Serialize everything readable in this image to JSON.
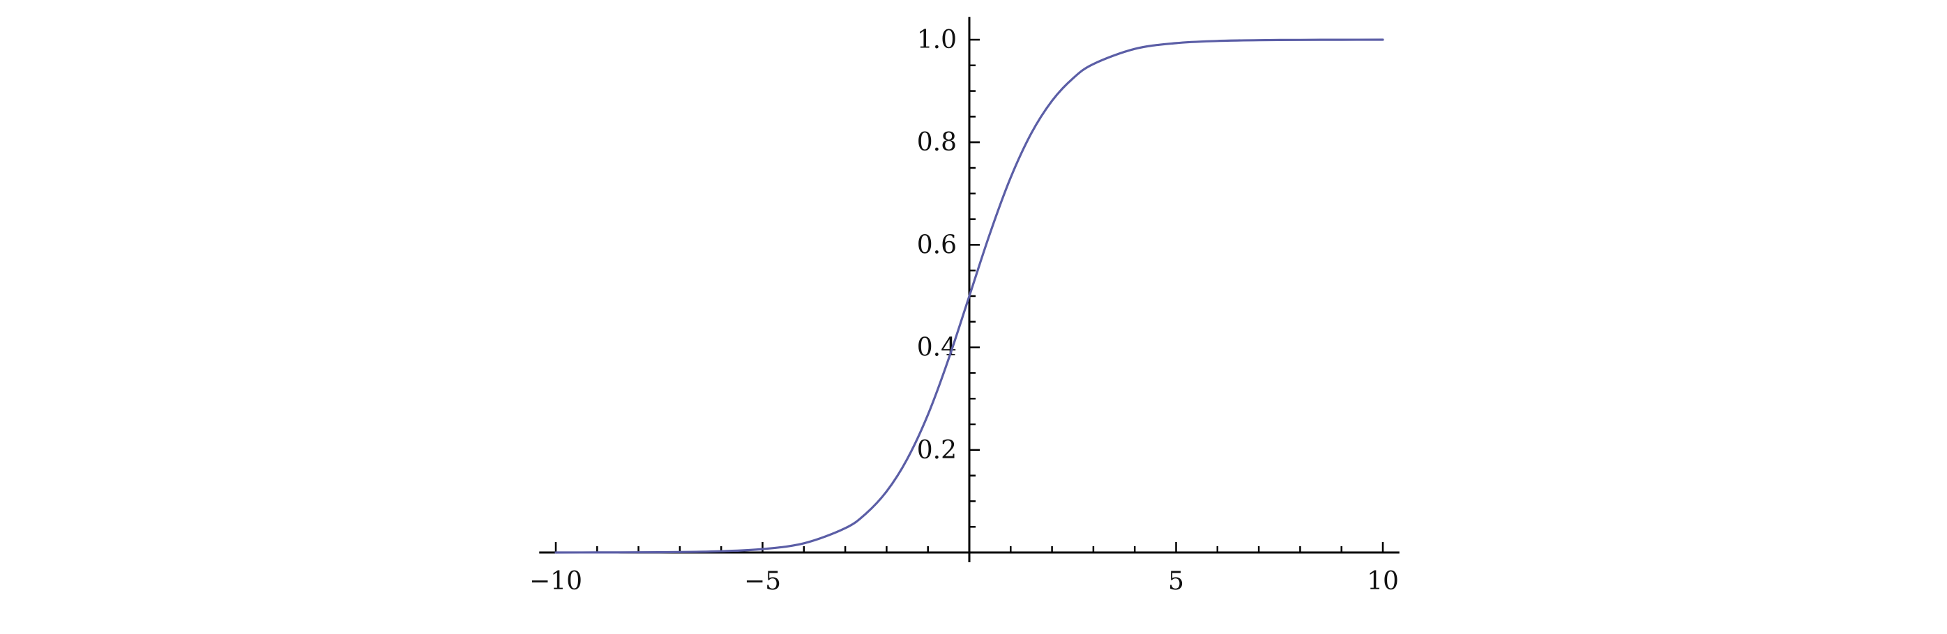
{
  "chart_data": {
    "type": "line",
    "title": "",
    "xlabel": "",
    "ylabel": "",
    "xlim": [
      -10.4,
      10.4
    ],
    "ylim": [
      0,
      1.02
    ],
    "x_major_ticks": [
      -10,
      -5,
      5,
      10
    ],
    "x_tick_labels": [
      "−10",
      "−5",
      "5",
      "10"
    ],
    "x_minor_step": 1,
    "y_major_ticks": [
      0.2,
      0.4,
      0.6,
      0.8,
      1.0
    ],
    "y_tick_labels": [
      "0.2",
      "0.4",
      "0.6",
      "0.8",
      "1.0"
    ],
    "y_minor_step": 0.05,
    "grid": false,
    "series": [
      {
        "color": "#5b5ea6",
        "x": [
          -10,
          -9,
          -8,
          -7,
          -6,
          -5,
          -4,
          -3,
          -2.5,
          -2,
          -1.5,
          -1,
          -0.5,
          0,
          0.5,
          1,
          1.5,
          2,
          2.5,
          3,
          4,
          5,
          6,
          7,
          8,
          9,
          10
        ],
        "y": [
          5e-05,
          0.00012,
          0.00034,
          0.00091,
          0.00247,
          0.00669,
          0.01799,
          0.04743,
          0.07586,
          0.1192,
          0.18243,
          0.26894,
          0.37754,
          0.5,
          0.62246,
          0.73106,
          0.81757,
          0.8808,
          0.92414,
          0.95257,
          0.98201,
          0.99331,
          0.99753,
          0.99909,
          0.99966,
          0.99988,
          0.99995
        ]
      }
    ]
  }
}
